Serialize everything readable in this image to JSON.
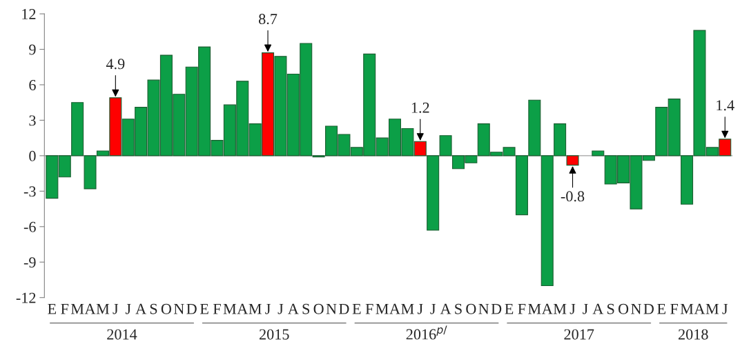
{
  "chart_data": {
    "type": "bar",
    "categories": [
      "E",
      "F",
      "M",
      "A",
      "M",
      "J",
      "J",
      "A",
      "S",
      "O",
      "N",
      "D",
      "E",
      "F",
      "M",
      "A",
      "M",
      "J",
      "J",
      "A",
      "S",
      "O",
      "N",
      "D",
      "E",
      "F",
      "M",
      "A",
      "M",
      "J",
      "J",
      "A",
      "S",
      "O",
      "N",
      "D",
      "E",
      "F",
      "M",
      "A",
      "M",
      "J",
      "J",
      "A",
      "S",
      "O",
      "N",
      "D",
      "E",
      "F",
      "M",
      "A",
      "M",
      "J"
    ],
    "values": [
      -3.6,
      -1.8,
      4.5,
      -2.8,
      0.4,
      4.9,
      3.1,
      4.1,
      6.4,
      8.5,
      5.2,
      7.5,
      9.2,
      1.3,
      4.3,
      6.3,
      2.7,
      8.7,
      8.4,
      6.9,
      9.5,
      -0.1,
      2.5,
      1.8,
      0.7,
      8.6,
      1.5,
      3.1,
      2.3,
      1.2,
      -6.3,
      1.7,
      -1.1,
      -0.6,
      2.7,
      0.3,
      0.7,
      -5.0,
      4.7,
      -11.0,
      2.7,
      -0.8,
      null,
      0.4,
      -2.4,
      -2.3,
      -4.5,
      -0.4,
      4.1,
      4.8,
      -4.1,
      10.6,
      0.7,
      1.4
    ],
    "colors": [
      "#0c9f47",
      "#0c9f47",
      "#0c9f47",
      "#0c9f47",
      "#0c9f47",
      "#ff0000",
      "#0c9f47",
      "#0c9f47",
      "#0c9f47",
      "#0c9f47",
      "#0c9f47",
      "#0c9f47",
      "#0c9f47",
      "#0c9f47",
      "#0c9f47",
      "#0c9f47",
      "#0c9f47",
      "#ff0000",
      "#0c9f47",
      "#0c9f47",
      "#0c9f47",
      "#0c9f47",
      "#0c9f47",
      "#0c9f47",
      "#0c9f47",
      "#0c9f47",
      "#0c9f47",
      "#0c9f47",
      "#0c9f47",
      "#ff0000",
      "#0c9f47",
      "#0c9f47",
      "#0c9f47",
      "#0c9f47",
      "#0c9f47",
      "#0c9f47",
      "#0c9f47",
      "#0c9f47",
      "#0c9f47",
      "#0c9f47",
      "#0c9f47",
      "#ff0000",
      "#0c9f47",
      "#0c9f47",
      "#0c9f47",
      "#0c9f47",
      "#0c9f47",
      "#0c9f47",
      "#0c9f47",
      "#0c9f47",
      "#0c9f47",
      "#0c9f47",
      "#0c9f47",
      "#ff0000"
    ],
    "value_labels": [
      null,
      null,
      null,
      null,
      null,
      "4.9",
      null,
      null,
      null,
      null,
      null,
      null,
      null,
      null,
      null,
      null,
      null,
      "8.7",
      null,
      null,
      null,
      null,
      null,
      null,
      null,
      null,
      null,
      null,
      null,
      "1.2",
      null,
      null,
      null,
      null,
      null,
      null,
      null,
      null,
      null,
      null,
      null,
      "-0.8",
      null,
      null,
      null,
      null,
      null,
      null,
      null,
      null,
      null,
      null,
      null,
      "1.4"
    ],
    "ylim": [
      -12,
      12
    ],
    "yticks": [
      -12,
      -9,
      -6,
      -3,
      0,
      3,
      6,
      9,
      12
    ],
    "annotations": [
      "2014",
      "2015",
      "2016$^{p/}$",
      "2017",
      "2018"
    ]
  }
}
